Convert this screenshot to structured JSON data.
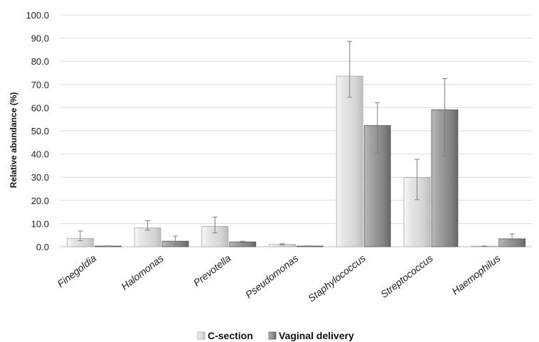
{
  "chart_data": {
    "type": "bar",
    "title": "",
    "xlabel": "",
    "ylabel": "Relative abundance (%)",
    "ylim": [
      0,
      100
    ],
    "yticks": [
      "0.0",
      "10.0",
      "20.0",
      "30.0",
      "40.0",
      "50.0",
      "60.0",
      "70.0",
      "80.0",
      "90.0",
      "100.0"
    ],
    "grid": true,
    "legend_position": "bottom",
    "categories": [
      "Finegoldia",
      "Halomonas",
      "Prevotella",
      "Pseudomonas",
      "Staphylococcus",
      "Streptococcus",
      "Haemophilus"
    ],
    "series": [
      {
        "name": "C-section",
        "color": "#d9d9d9",
        "values": [
          3.6,
          8.1,
          8.8,
          1.0,
          73.6,
          29.9,
          0.2
        ],
        "err_low": [
          2.6,
          7.2,
          6.0,
          0.8,
          64.5,
          20.3,
          0.1
        ],
        "err_high": [
          6.8,
          11.2,
          12.8,
          1.3,
          88.6,
          37.7,
          0.3
        ]
      },
      {
        "name": "Vaginal delivery",
        "color": "#8c8c8c",
        "values": [
          0.3,
          2.4,
          2.1,
          0.3,
          52.3,
          59.1,
          3.4
        ],
        "err_low": [
          0.2,
          1.0,
          1.7,
          0.2,
          40.3,
          39.0,
          2.9
        ],
        "err_high": [
          0.4,
          4.6,
          2.4,
          0.4,
          62.2,
          72.5,
          5.5
        ]
      }
    ]
  }
}
